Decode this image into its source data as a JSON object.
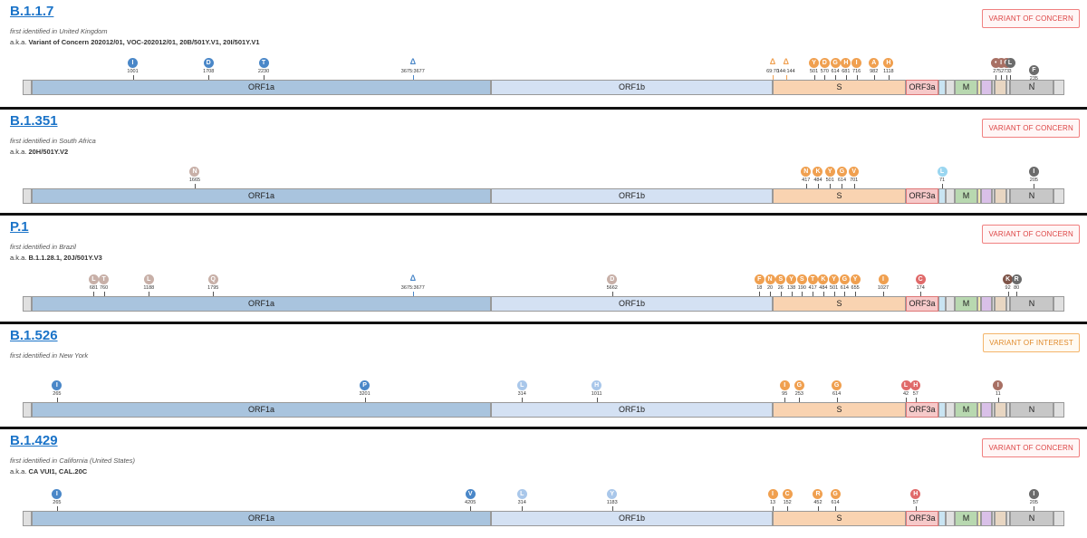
{
  "colors": {
    "orf1a": "#a9c4de",
    "orf1b": "#d4e1f3",
    "s": "#f9d3b1",
    "orf3a": "#f6c9c9",
    "e": "#c9e4f2",
    "m": "#b8d8b0",
    "orf6": "#f1ecb0",
    "orf7": "#d9c0e8",
    "orf8": "#e8d6c2",
    "n": "#c7c7c7",
    "flank": "#e0e0e0",
    "marker": {
      "blue": "#4a87c8",
      "lightblue": "#a9c7ea",
      "orange": "#f0a050",
      "red": "#e06a6a",
      "brown": "#a87064",
      "grey": "#6b6b6b",
      "tan": "#c8b0a8",
      "lightcyan": "#9ad6f0",
      "darkbrown": "#7e5448"
    }
  },
  "genes": {
    "orf1a": "ORF1a",
    "orf1b": "ORF1b",
    "s": "S",
    "orf3a": "ORF3a",
    "m": "M",
    "n": "N"
  },
  "variants": [
    {
      "name": "B.1.1.7",
      "first": "first identified in United Kingdom",
      "aka_prefix": "a.k.a.",
      "aka": "Variant of Concern 202012/01, VOC-202012/01, 20B/501Y.V1, 20I/501Y.V1",
      "badge": "VARIANT OF CONCERN",
      "badge_type": "concern",
      "markers": [
        {
          "gene": "orf1a",
          "frac": 0.22,
          "label": "I",
          "pos": "1001",
          "color": "blue"
        },
        {
          "gene": "orf1a",
          "frac": 0.385,
          "label": "D",
          "pos": "1708",
          "color": "blue"
        },
        {
          "gene": "orf1a",
          "frac": 0.505,
          "label": "T",
          "pos": "2230",
          "color": "blue"
        },
        {
          "gene": "orf1a",
          "frac": 0.83,
          "label": "Δ",
          "pos": "3675:3677",
          "color": "blue",
          "kind": "del"
        },
        {
          "gene": "s",
          "frac": 0.0,
          "label": "Δ",
          "pos": "69:70",
          "color": "orange",
          "kind": "del"
        },
        {
          "gene": "s",
          "frac": 0.1,
          "label": "Δ",
          "pos": "144:144",
          "color": "orange",
          "kind": "del"
        },
        {
          "gene": "s",
          "frac": 0.31,
          "label": "Y",
          "pos": "501",
          "color": "orange"
        },
        {
          "gene": "s",
          "frac": 0.39,
          "label": "D",
          "pos": "570",
          "color": "orange"
        },
        {
          "gene": "s",
          "frac": 0.47,
          "label": "G",
          "pos": "614",
          "color": "orange"
        },
        {
          "gene": "s",
          "frac": 0.55,
          "label": "H",
          "pos": "681",
          "color": "orange"
        },
        {
          "gene": "s",
          "frac": 0.63,
          "label": "I",
          "pos": "716",
          "color": "orange"
        },
        {
          "gene": "s",
          "frac": 0.76,
          "label": "A",
          "pos": "982",
          "color": "orange"
        },
        {
          "gene": "s",
          "frac": 0.87,
          "label": "H",
          "pos": "1118",
          "color": "orange"
        },
        {
          "gene": "orf8",
          "frac": 0.1,
          "label": "•",
          "pos": "27",
          "color": "brown"
        },
        {
          "gene": "orf8",
          "frac": 0.55,
          "label": "I",
          "pos": "52",
          "color": "brown"
        },
        {
          "gene": "orf8",
          "frac": 1.0,
          "label": "C",
          "pos": "73",
          "color": "brown"
        },
        {
          "gene": "n",
          "frac": 0.0,
          "label": "L",
          "pos": "3",
          "color": "grey"
        },
        {
          "gene": "n",
          "frac": 0.55,
          "label": "F",
          "pos": "235",
          "color": "grey",
          "low": true
        }
      ]
    },
    {
      "name": "B.1.351",
      "first": "first identified in South Africa",
      "aka_prefix": "a.k.a.",
      "aka": "20H/501Y.V2",
      "badge": "VARIANT OF CONCERN",
      "badge_type": "concern",
      "markers": [
        {
          "gene": "orf1a",
          "frac": 0.355,
          "label": "N",
          "pos": "1665",
          "color": "tan"
        },
        {
          "gene": "s",
          "frac": 0.25,
          "label": "N",
          "pos": "417",
          "color": "orange"
        },
        {
          "gene": "s",
          "frac": 0.34,
          "label": "K",
          "pos": "484",
          "color": "orange"
        },
        {
          "gene": "s",
          "frac": 0.43,
          "label": "Y",
          "pos": "501",
          "color": "orange"
        },
        {
          "gene": "s",
          "frac": 0.52,
          "label": "G",
          "pos": "614",
          "color": "orange"
        },
        {
          "gene": "s",
          "frac": 0.61,
          "label": "V",
          "pos": "701",
          "color": "orange"
        },
        {
          "gene": "e",
          "frac": 0.5,
          "label": "L",
          "pos": "71",
          "color": "lightcyan"
        },
        {
          "gene": "n",
          "frac": 0.55,
          "label": "I",
          "pos": "205",
          "color": "grey"
        }
      ]
    },
    {
      "name": "P.1",
      "first": "first identified in Brazil",
      "aka_prefix": "a.k.a.",
      "aka": "B.1.1.28.1, 20J/501Y.V3",
      "badge": "VARIANT OF CONCERN",
      "badge_type": "concern",
      "markers": [
        {
          "gene": "orf1a",
          "frac": 0.135,
          "label": "L",
          "pos": "681",
          "color": "tan"
        },
        {
          "gene": "orf1a",
          "frac": 0.157,
          "label": "T",
          "pos": "760",
          "color": "tan"
        },
        {
          "gene": "orf1a",
          "frac": 0.255,
          "label": "L",
          "pos": "1188",
          "color": "tan"
        },
        {
          "gene": "orf1a",
          "frac": 0.395,
          "label": "Q",
          "pos": "1795",
          "color": "tan"
        },
        {
          "gene": "orf1a",
          "frac": 0.83,
          "label": "Δ",
          "pos": "3675:3677",
          "color": "blue",
          "kind": "del"
        },
        {
          "gene": "orf1b",
          "frac": 0.43,
          "label": "D",
          "pos": "5662",
          "color": "tan"
        },
        {
          "gene": "s",
          "frac": -0.1,
          "label": "F",
          "pos": "18",
          "color": "orange"
        },
        {
          "gene": "s",
          "frac": -0.02,
          "label": "N",
          "pos": "20",
          "color": "orange"
        },
        {
          "gene": "s",
          "frac": 0.06,
          "label": "S",
          "pos": "26",
          "color": "orange"
        },
        {
          "gene": "s",
          "frac": 0.14,
          "label": "Y",
          "pos": "138",
          "color": "orange"
        },
        {
          "gene": "s",
          "frac": 0.22,
          "label": "S",
          "pos": "190",
          "color": "orange"
        },
        {
          "gene": "s",
          "frac": 0.3,
          "label": "T",
          "pos": "417",
          "color": "orange"
        },
        {
          "gene": "s",
          "frac": 0.38,
          "label": "K",
          "pos": "484",
          "color": "orange"
        },
        {
          "gene": "s",
          "frac": 0.46,
          "label": "Y",
          "pos": "501",
          "color": "orange"
        },
        {
          "gene": "s",
          "frac": 0.54,
          "label": "G",
          "pos": "614",
          "color": "orange"
        },
        {
          "gene": "s",
          "frac": 0.62,
          "label": "Y",
          "pos": "655",
          "color": "orange"
        },
        {
          "gene": "s",
          "frac": 0.83,
          "label": "I",
          "pos": "1027",
          "color": "orange"
        },
        {
          "gene": "orf3a",
          "frac": 0.45,
          "label": "C",
          "pos": "174",
          "color": "red"
        },
        {
          "gene": "n",
          "frac": -0.05,
          "label": "K",
          "pos": "92",
          "color": "darkbrown"
        },
        {
          "gene": "n",
          "frac": 0.15,
          "label": "R",
          "pos": "80",
          "color": "grey"
        }
      ]
    },
    {
      "name": "B.1.526",
      "first": "first identified in New York",
      "aka_prefix": "",
      "aka": "",
      "badge": "VARIANT OF INTEREST",
      "badge_type": "interest",
      "markers": [
        {
          "gene": "orf1a",
          "frac": 0.055,
          "label": "I",
          "pos": "265",
          "color": "blue"
        },
        {
          "gene": "orf1a",
          "frac": 0.725,
          "label": "P",
          "pos": "3201",
          "color": "blue"
        },
        {
          "gene": "orf1b",
          "frac": 0.11,
          "label": "L",
          "pos": "314",
          "color": "lightblue"
        },
        {
          "gene": "orf1b",
          "frac": 0.375,
          "label": "H",
          "pos": "1011",
          "color": "lightblue"
        },
        {
          "gene": "s",
          "frac": 0.09,
          "label": "I",
          "pos": "95",
          "color": "orange"
        },
        {
          "gene": "s",
          "frac": 0.2,
          "label": "G",
          "pos": "253",
          "color": "orange"
        },
        {
          "gene": "s",
          "frac": 0.48,
          "label": "G",
          "pos": "614",
          "color": "orange"
        },
        {
          "gene": "orf3a",
          "frac": 0.0,
          "label": "L",
          "pos": "42",
          "color": "red"
        },
        {
          "gene": "orf3a",
          "frac": 0.3,
          "label": "H",
          "pos": "57",
          "color": "red"
        },
        {
          "gene": "orf8",
          "frac": 0.3,
          "label": "I",
          "pos": "11",
          "color": "brown"
        }
      ]
    },
    {
      "name": "B.1.429",
      "first": "first identified in California (United States)",
      "aka_prefix": "a.k.a.",
      "aka": "CA VUI1, CAL.20C",
      "badge": "VARIANT OF CONCERN",
      "badge_type": "concern",
      "markers": [
        {
          "gene": "orf1a",
          "frac": 0.055,
          "label": "I",
          "pos": "265",
          "color": "blue"
        },
        {
          "gene": "orf1a",
          "frac": 0.955,
          "label": "V",
          "pos": "4205",
          "color": "blue"
        },
        {
          "gene": "orf1b",
          "frac": 0.11,
          "label": "L",
          "pos": "314",
          "color": "lightblue"
        },
        {
          "gene": "orf1b",
          "frac": 0.43,
          "label": "Y",
          "pos": "1183",
          "color": "lightblue"
        },
        {
          "gene": "s",
          "frac": 0.0,
          "label": "I",
          "pos": "13",
          "color": "orange"
        },
        {
          "gene": "s",
          "frac": 0.11,
          "label": "C",
          "pos": "152",
          "color": "orange"
        },
        {
          "gene": "s",
          "frac": 0.34,
          "label": "R",
          "pos": "452",
          "color": "orange"
        },
        {
          "gene": "s",
          "frac": 0.47,
          "label": "G",
          "pos": "614",
          "color": "orange"
        },
        {
          "gene": "orf3a",
          "frac": 0.3,
          "label": "H",
          "pos": "57",
          "color": "red"
        },
        {
          "gene": "n",
          "frac": 0.55,
          "label": "I",
          "pos": "205",
          "color": "grey"
        }
      ]
    }
  ]
}
